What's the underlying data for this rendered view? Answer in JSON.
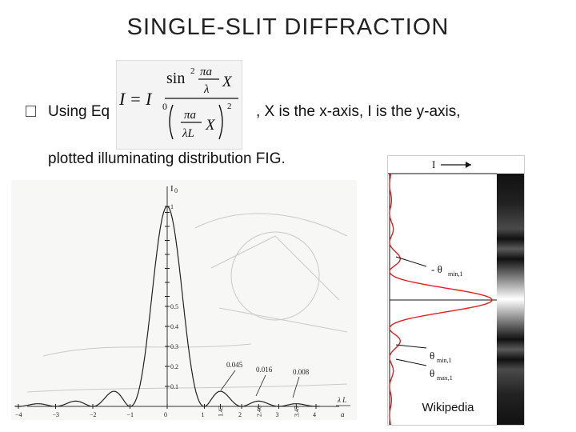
{
  "title": "SINGLE-SLIT DIFFRACTION",
  "bullet": {
    "text_before": "Using Eq",
    "text_after": ", X is the x-axis, I is the y-axis,",
    "line2": "plotted illuminating distribution FIG."
  },
  "formula": {
    "lhs": "I = I",
    "sub0": "0",
    "num": "sin",
    "num_sup": "2",
    "pi_a": "πa",
    "lambda": "λ",
    "X": "X",
    "lambda_L": "λL",
    "den_sup": "2"
  },
  "left_plot": {
    "y_axis_label": "I",
    "y_axis_sub": "0",
    "y_ticks": [
      "1",
      "0.5",
      "0.4",
      "0.3",
      "0.2",
      "0.1"
    ],
    "x_ticks": [
      "−4",
      "−3",
      "−2",
      "−1",
      "0",
      "1",
      "1.43",
      "2",
      "2.46",
      "3",
      "3.47",
      "4"
    ],
    "annotations": [
      "0.045",
      "0.016",
      "0.008"
    ],
    "x_axis_label_num": "λ L",
    "x_axis_label_den": "a"
  },
  "chart_data": {
    "type": "line",
    "title": "",
    "xlabel": "λ L / a",
    "ylabel": "I0",
    "x": [
      -4,
      -3.5,
      -3,
      -2.5,
      -2,
      -1.5,
      -1,
      -0.75,
      -0.5,
      -0.25,
      0,
      0.25,
      0.5,
      0.75,
      1,
      1.43,
      2,
      2.46,
      3,
      3.47,
      4
    ],
    "y": [
      0,
      0.008,
      0,
      0.016,
      0,
      0.045,
      0,
      0.16,
      0.405,
      0.81,
      1,
      0.81,
      0.405,
      0.16,
      0,
      0.045,
      0,
      0.016,
      0,
      0.008,
      0
    ],
    "xlim": [
      -4.3,
      4.3
    ],
    "ylim": [
      0,
      1.05
    ],
    "grid": false
  },
  "right_plot": {
    "axis_label": "I",
    "labels": [
      "- θ",
      "min,1",
      "θ",
      "min,1",
      "θ",
      "max,1"
    ],
    "credit": "Wikipedia"
  }
}
